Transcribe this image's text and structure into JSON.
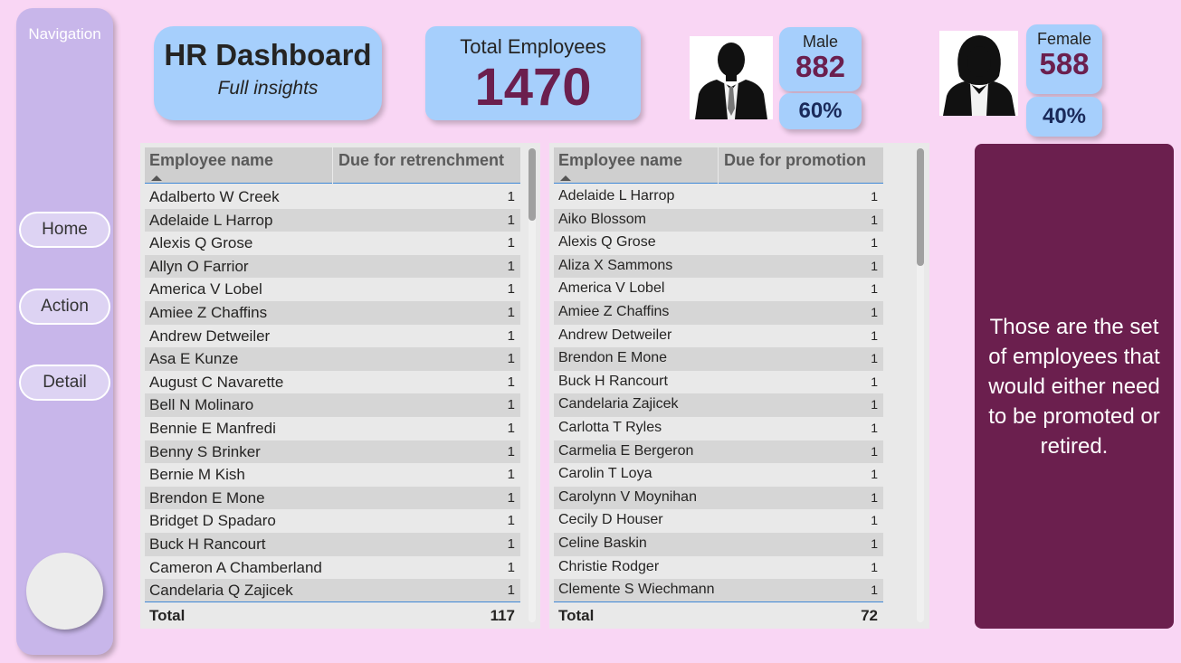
{
  "nav": {
    "title": "Navigation",
    "buttons": [
      "Home",
      "Action",
      "Detail"
    ]
  },
  "header": {
    "title": "HR Dashboard",
    "subtitle": "Full insights"
  },
  "total": {
    "label": "Total Employees",
    "value": "1470"
  },
  "male": {
    "label": "Male",
    "count": "882",
    "percent": "60%"
  },
  "female": {
    "label": "Female",
    "count": "588",
    "percent": "40%"
  },
  "retrenchment_table": {
    "columns": [
      "Employee name",
      "Due for retrenchment"
    ],
    "rows": [
      [
        "Adalberto W Creek",
        "1"
      ],
      [
        "Adelaide L Harrop",
        "1"
      ],
      [
        "Alexis Q Grose",
        "1"
      ],
      [
        "Allyn O Farrior",
        "1"
      ],
      [
        "America V Lobel",
        "1"
      ],
      [
        "Amiee Z Chaffins",
        "1"
      ],
      [
        "Andrew Detweiler",
        "1"
      ],
      [
        "Asa E Kunze",
        "1"
      ],
      [
        "August C Navarette",
        "1"
      ],
      [
        "Bell N Molinaro",
        "1"
      ],
      [
        "Bennie E Manfredi",
        "1"
      ],
      [
        "Benny S Brinker",
        "1"
      ],
      [
        "Bernie M Kish",
        "1"
      ],
      [
        "Brendon E Mone",
        "1"
      ],
      [
        "Bridget D Spadaro",
        "1"
      ],
      [
        "Buck H Rancourt",
        "1"
      ],
      [
        "Cameron A Chamberland",
        "1"
      ],
      [
        "Candelaria Q Zajicek",
        "1"
      ]
    ],
    "total_label": "Total",
    "total_value": "117"
  },
  "promotion_table": {
    "columns": [
      "Employee name",
      "Due for promotion"
    ],
    "rows": [
      [
        "Adelaide L Harrop",
        "1"
      ],
      [
        "Aiko Blossom",
        "1"
      ],
      [
        "Alexis Q Grose",
        "1"
      ],
      [
        "Aliza X Sammons",
        "1"
      ],
      [
        "America V Lobel",
        "1"
      ],
      [
        "Amiee Z Chaffins",
        "1"
      ],
      [
        "Andrew Detweiler",
        "1"
      ],
      [
        "Brendon E Mone",
        "1"
      ],
      [
        "Buck H Rancourt",
        "1"
      ],
      [
        "Candelaria Zajicek",
        "1"
      ],
      [
        "Carlotta T Ryles",
        "1"
      ],
      [
        "Carmelia E Bergeron",
        "1"
      ],
      [
        "Carolin T Loya",
        "1"
      ],
      [
        "Carolynn V Moynihan",
        "1"
      ],
      [
        "Cecily D Houser",
        "1"
      ],
      [
        "Celine Baskin",
        "1"
      ],
      [
        "Christie Rodger",
        "1"
      ],
      [
        "Clemente S Wiechmann",
        "1"
      ]
    ],
    "total_label": "Total",
    "total_value": "72"
  },
  "note": "Those are the set of employees that would either need to be promoted or retired.",
  "icons": {
    "male": "male-avatar-icon",
    "female": "female-avatar-icon",
    "sort": "sort-ascending-icon"
  },
  "colors": {
    "background": "#f9d6f4",
    "nav": "#c8b6ea",
    "card": "#a6cffc",
    "accent": "#6b1f4e"
  }
}
